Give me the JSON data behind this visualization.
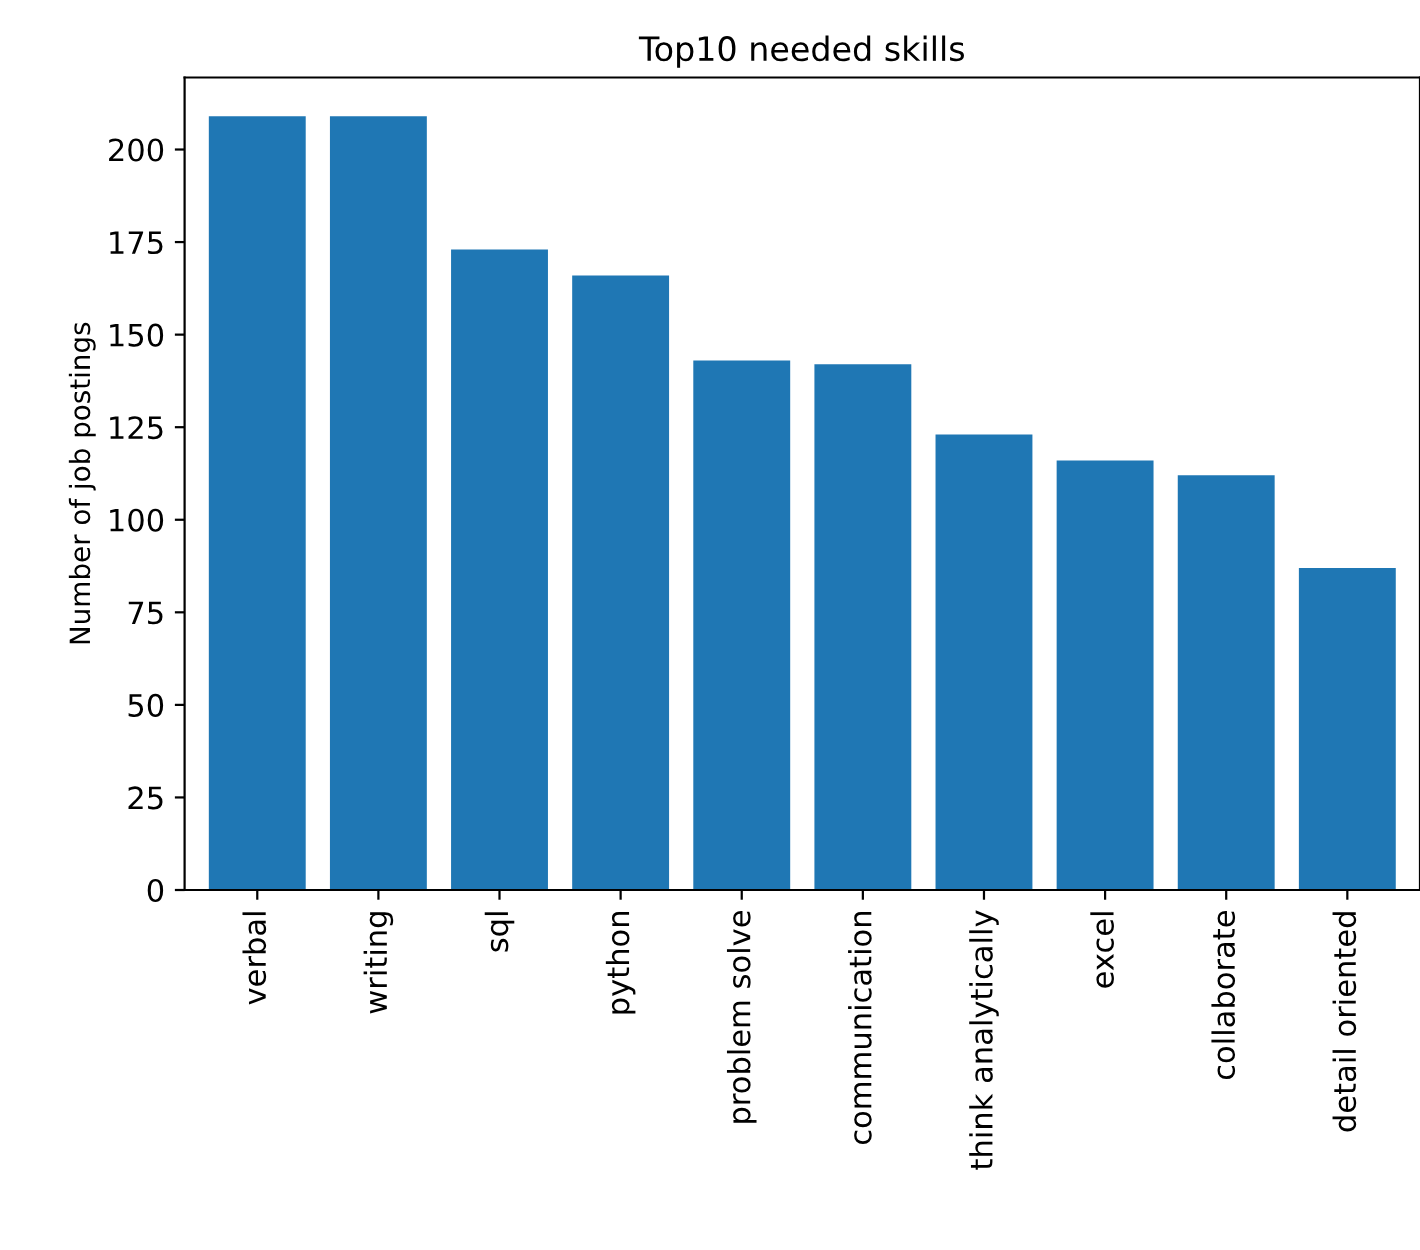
{
  "chart_data": {
    "type": "bar",
    "title": "Top10 needed skills",
    "ylabel": "Number of job postings",
    "categories": [
      "verbal",
      "writing",
      "sql",
      "python",
      "problem solve",
      "communication",
      "think analytically",
      "excel",
      "collaborate",
      "detail oriented"
    ],
    "values": [
      209,
      209,
      173,
      166,
      143,
      142,
      123,
      116,
      112,
      87
    ],
    "color": "#1f77b4",
    "ylim": [
      0,
      219.45
    ],
    "yticks": [
      0,
      25,
      50,
      75,
      100,
      125,
      150,
      175,
      200
    ],
    "grid": false,
    "legend": false
  }
}
